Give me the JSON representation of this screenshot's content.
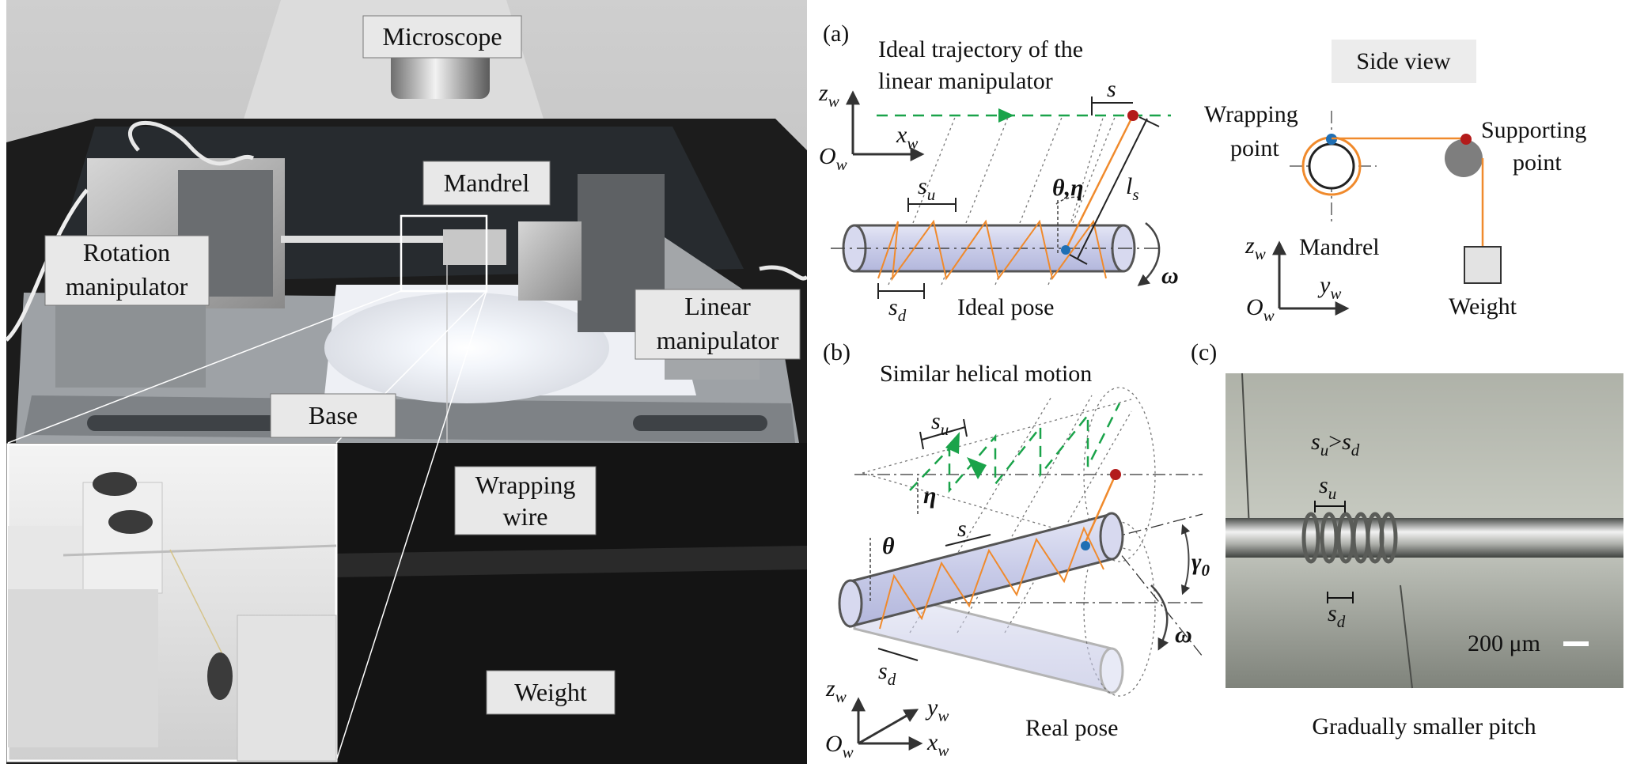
{
  "photo": {
    "labels": {
      "microscope": "Microscope",
      "mandrel": "Mandrel",
      "rotation_1": "Rotation",
      "rotation_2": "manipulator",
      "linear_1": "Linear",
      "linear_2": "manipulator",
      "base": "Base",
      "wrapping_1": "Wrapping",
      "wrapping_2": "wire",
      "weight": "Weight"
    }
  },
  "panel_a": {
    "tag": "(a)",
    "title_1": "Ideal trajectory of the",
    "title_2": "linear manipulator",
    "s": "s",
    "s_u": "s",
    "s_u_sub": "u",
    "s_d": "s",
    "s_d_sub": "d",
    "l_s": "l",
    "l_s_sub": "s",
    "theta_eta": "θ,η",
    "omega": "ω",
    "caption": "Ideal pose",
    "axis_z": "z",
    "axis_z_sub": "w",
    "axis_x": "x",
    "axis_x_sub": "w",
    "origin": "O",
    "origin_sub": "w"
  },
  "side_view": {
    "title": "Side view",
    "wrapping_1": "Wrapping",
    "wrapping_2": "point",
    "supporting_1": "Supporting",
    "supporting_2": "point",
    "mandrel": "Mandrel",
    "weight": "Weight",
    "axis_z": "z",
    "axis_z_sub": "w",
    "axis_y": "y",
    "axis_y_sub": "w",
    "origin": "O",
    "origin_sub": "w"
  },
  "panel_b": {
    "tag": "(b)",
    "title": "Similar helical motion",
    "s_u": "s",
    "s_u_sub": "u",
    "s": "s",
    "s_d": "s",
    "s_d_sub": "d",
    "eta": "η",
    "theta": "θ",
    "gamma": "γ",
    "gamma_sub": "0",
    "omega": "ω",
    "caption": "Real pose",
    "axis_z": "z",
    "axis_z_sub": "w",
    "axis_y": "y",
    "axis_y_sub": "w",
    "axis_x": "x",
    "axis_x_sub": "w",
    "origin": "O",
    "origin_sub": "w"
  },
  "panel_c": {
    "tag": "(c)",
    "ratio_su": "s",
    "ratio_su_sub": "u",
    "ratio_gt": ">",
    "ratio_sd": "s",
    "ratio_sd_sub": "d",
    "s_u": "s",
    "s_u_sub": "u",
    "s_d": "s",
    "s_d_sub": "d",
    "scale_bar": "200 μm",
    "caption": "Gradually smaller pitch"
  }
}
